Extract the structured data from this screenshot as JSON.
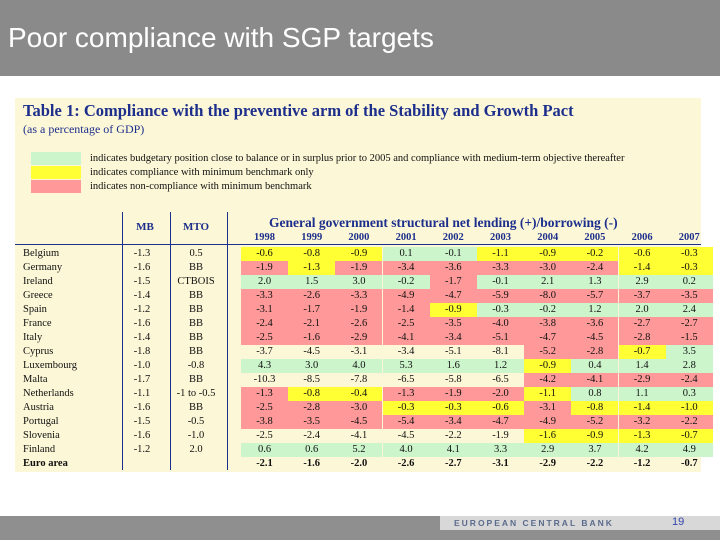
{
  "slide": {
    "title": "Poor compliance with SGP targets"
  },
  "table": {
    "title": "Table 1: Compliance with the preventive arm of the Stability and Growth Pact",
    "subtitle": "(as a percentage of GDP)",
    "legend": [
      {
        "color": "#ccf5cc",
        "text": "indicates budgetary position close to balance or in surplus prior to 2005 and compliance with medium-term objective thereafter"
      },
      {
        "color": "#ffff33",
        "text": "indicates compliance with minimum benchmark only"
      },
      {
        "color": "#ff9999",
        "text": "indicates non-compliance with minimum benchmark"
      }
    ],
    "headers": {
      "mb": "MB",
      "mto": "MTO",
      "main": "General government structural net lending (+)/borrowing (-)",
      "years": [
        "1998",
        "1999",
        "2000",
        "2001",
        "2002",
        "2003",
        "2004",
        "2005",
        "2006",
        "2007"
      ]
    },
    "colors": {
      "green": "#ccf5cc",
      "yellow": "#ffff33",
      "red": "#ff9999",
      "none": "transparent"
    },
    "rows": [
      {
        "country": "Belgium",
        "mb": "-1.3",
        "mto": "0.5",
        "values": [
          "-0.6",
          "-0.8",
          "-0.9",
          "0.1",
          "-0.1",
          "-1.1",
          "-0.9",
          "-0.2",
          "-0.6",
          "-0.3"
        ],
        "colors": [
          "yellow",
          "yellow",
          "yellow",
          "green",
          "green",
          "yellow",
          "yellow",
          "yellow",
          "yellow",
          "yellow"
        ]
      },
      {
        "country": "Germany",
        "mb": "-1.6",
        "mto": "BB",
        "values": [
          "-1.9",
          "-1.3",
          "-1.9",
          "-3.4",
          "-3.6",
          "-3.3",
          "-3.0",
          "-2.4",
          "-1.4",
          "-0.3"
        ],
        "colors": [
          "red",
          "yellow",
          "red",
          "red",
          "red",
          "red",
          "red",
          "red",
          "yellow",
          "yellow"
        ]
      },
      {
        "country": "Ireland",
        "mb": "-1.5",
        "mto": "CTBOIS",
        "values": [
          "2.0",
          "1.5",
          "3.0",
          "-0.2",
          "-1.7",
          "-0.1",
          "2.1",
          "1.3",
          "2.9",
          "0.2"
        ],
        "colors": [
          "green",
          "green",
          "green",
          "green",
          "red",
          "green",
          "green",
          "green",
          "green",
          "green"
        ]
      },
      {
        "country": "Greece",
        "mb": "-1.4",
        "mto": "BB",
        "values": [
          "-3.3",
          "-2.6",
          "-3.3",
          "-4.9",
          "-4.7",
          "-5.9",
          "-8.0",
          "-5.7",
          "-3.7",
          "-3.5"
        ],
        "colors": [
          "red",
          "red",
          "red",
          "red",
          "red",
          "red",
          "red",
          "red",
          "red",
          "red"
        ]
      },
      {
        "country": "Spain",
        "mb": "-1.2",
        "mto": "BB",
        "values": [
          "-3.1",
          "-1.7",
          "-1.9",
          "-1.4",
          "-0.9",
          "-0.3",
          "-0.2",
          "1.2",
          "2.0",
          "2.4"
        ],
        "colors": [
          "red",
          "red",
          "red",
          "red",
          "yellow",
          "green",
          "green",
          "green",
          "green",
          "green"
        ]
      },
      {
        "country": "France",
        "mb": "-1.6",
        "mto": "BB",
        "values": [
          "-2.4",
          "-2.1",
          "-2.6",
          "-2.5",
          "-3.5",
          "-4.0",
          "-3.8",
          "-3.6",
          "-2.7",
          "-2.7"
        ],
        "colors": [
          "red",
          "red",
          "red",
          "red",
          "red",
          "red",
          "red",
          "red",
          "red",
          "red"
        ]
      },
      {
        "country": "Italy",
        "mb": "-1.4",
        "mto": "BB",
        "values": [
          "-2.5",
          "-1.6",
          "-2.9",
          "-4.1",
          "-3.4",
          "-5.1",
          "-4.7",
          "-4.5",
          "-2.8",
          "-1.5"
        ],
        "colors": [
          "red",
          "red",
          "red",
          "red",
          "red",
          "red",
          "red",
          "red",
          "red",
          "red"
        ]
      },
      {
        "country": "Cyprus",
        "mb": "-1.8",
        "mto": "BB",
        "values": [
          "-3.7",
          "-4.5",
          "-3.1",
          "-3.4",
          "-5.1",
          "-8.1",
          "-5.2",
          "-2.8",
          "-0.7",
          "3.5"
        ],
        "colors": [
          "none",
          "none",
          "none",
          "none",
          "none",
          "none",
          "red",
          "red",
          "yellow",
          "green"
        ]
      },
      {
        "country": "Luxembourg",
        "mb": "-1.0",
        "mto": "-0.8",
        "values": [
          "4.3",
          "3.0",
          "4.0",
          "5.3",
          "1.6",
          "1.2",
          "-0.9",
          "0.4",
          "1.4",
          "2.8"
        ],
        "colors": [
          "green",
          "green",
          "green",
          "green",
          "green",
          "green",
          "yellow",
          "green",
          "green",
          "green"
        ]
      },
      {
        "country": "Malta",
        "mb": "-1.7",
        "mto": "BB",
        "values": [
          "-10.3",
          "-8.5",
          "-7.8",
          "-6.5",
          "-5.8",
          "-6.5",
          "-4.2",
          "-4.1",
          "-2.9",
          "-2.4"
        ],
        "colors": [
          "none",
          "none",
          "none",
          "none",
          "none",
          "none",
          "red",
          "red",
          "red",
          "red"
        ]
      },
      {
        "country": "Netherlands",
        "mb": "-1.1",
        "mto": "-1 to -0.5",
        "values": [
          "-1.3",
          "-0.8",
          "-0.4",
          "-1.3",
          "-1.9",
          "-2.0",
          "-1.1",
          "0.8",
          "1.1",
          "0.3"
        ],
        "colors": [
          "red",
          "yellow",
          "yellow",
          "red",
          "red",
          "red",
          "yellow",
          "green",
          "green",
          "green"
        ]
      },
      {
        "country": "Austria",
        "mb": "-1.6",
        "mto": "BB",
        "values": [
          "-2.5",
          "-2.8",
          "-3.0",
          "-0.3",
          "-0.3",
          "-0.6",
          "-3.1",
          "-0.8",
          "-1.4",
          "-1.0"
        ],
        "colors": [
          "red",
          "red",
          "red",
          "yellow",
          "yellow",
          "yellow",
          "red",
          "yellow",
          "yellow",
          "yellow"
        ]
      },
      {
        "country": "Portugal",
        "mb": "-1.5",
        "mto": "-0.5",
        "values": [
          "-3.8",
          "-3.5",
          "-4.5",
          "-5.4",
          "-3.4",
          "-4.7",
          "-4.9",
          "-5.2",
          "-3.2",
          "-2.2"
        ],
        "colors": [
          "red",
          "red",
          "red",
          "red",
          "red",
          "red",
          "red",
          "red",
          "red",
          "red"
        ]
      },
      {
        "country": "Slovenia",
        "mb": "-1.6",
        "mto": "-1.0",
        "values": [
          "-2.5",
          "-2.4",
          "-4.1",
          "-4.5",
          "-2.2",
          "-1.9",
          "-1.6",
          "-0.9",
          "-1.3",
          "-0.7"
        ],
        "colors": [
          "none",
          "none",
          "none",
          "none",
          "none",
          "none",
          "yellow",
          "yellow",
          "yellow",
          "yellow"
        ]
      },
      {
        "country": "Finland",
        "mb": "-1.2",
        "mto": "2.0",
        "values": [
          "0.6",
          "0.6",
          "5.2",
          "4.0",
          "4.1",
          "3.3",
          "2.9",
          "3.7",
          "4.2",
          "4.9"
        ],
        "colors": [
          "green",
          "green",
          "green",
          "green",
          "green",
          "green",
          "green",
          "green",
          "green",
          "green"
        ]
      },
      {
        "country": "Euro area",
        "mb": "",
        "mto": "",
        "values": [
          "-2.1",
          "-1.6",
          "-2.0",
          "-2.6",
          "-2.7",
          "-3.1",
          "-2.9",
          "-2.2",
          "-1.2",
          "-0.7"
        ],
        "colors": [
          "none",
          "none",
          "none",
          "none",
          "none",
          "none",
          "none",
          "none",
          "none",
          "none"
        ],
        "bold": true
      }
    ]
  },
  "footer": {
    "bank": "EUROPEAN CENTRAL BANK",
    "page": "19"
  }
}
